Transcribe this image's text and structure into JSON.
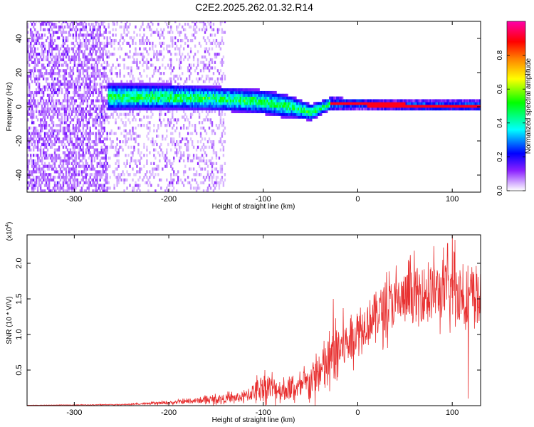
{
  "title": "C2E2.2025.262.01.32.R14",
  "chart_data": [
    {
      "type": "heatmap",
      "xlabel": "Height of straight line (km)",
      "ylabel": "Frequency (Hz)",
      "xlim": [
        -350,
        130
      ],
      "ylim": [
        -50,
        50
      ],
      "xticks": [
        -300,
        -200,
        -100,
        0,
        100
      ],
      "yticks": [
        -40,
        -20,
        0,
        20,
        40
      ],
      "colorbar": {
        "label": "Normalized spectral amplitude",
        "range": [
          0.0,
          1.0
        ],
        "ticks": [
          0.0,
          0.2,
          0.4,
          0.6,
          0.8
        ],
        "tick_labels": [
          "0.0",
          "0.2",
          "0.4",
          "0.6",
          "0.8"
        ],
        "colors": [
          "#ffffff",
          "#b57bff",
          "#7a00ff",
          "#0000ff",
          "#00ffff",
          "#00ff00",
          "#ffff00",
          "#ff7f00",
          "#ff0000",
          "#ff00aa"
        ]
      },
      "features": {
        "noise_region": [
          -350,
          -140
        ],
        "band_center": [
          [
            -260,
            5
          ],
          [
            -200,
            5
          ],
          [
            -150,
            4
          ],
          [
            -100,
            2
          ],
          [
            -70,
            -1
          ],
          [
            -50,
            -4
          ],
          [
            -30,
            1
          ],
          [
            0,
            1
          ],
          [
            50,
            0
          ],
          [
            130,
            0
          ]
        ],
        "band_halfwidth": [
          [
            -260,
            8
          ],
          [
            -150,
            7
          ],
          [
            -80,
            7
          ],
          [
            -40,
            4
          ],
          [
            0,
            3
          ],
          [
            130,
            3
          ]
        ],
        "peak_region": [
          -30,
          130
        ]
      }
    },
    {
      "type": "line",
      "xlabel": "Height of straight line (km)",
      "ylabel": "SNR (10 * V/V)",
      "y_multiplier": "(x10^4)",
      "y_multiplier_base": "(x10",
      "y_multiplier_exp": "4",
      "y_multiplier_close": ")",
      "xlim": [
        -350,
        130
      ],
      "ylim": [
        0,
        24000
      ],
      "xticks": [
        -300,
        -200,
        -100,
        0,
        100
      ],
      "yticks": [
        5000,
        10000,
        15000,
        20000
      ],
      "ytick_labels": [
        "0.5",
        "1.0",
        "1.5",
        "2.0"
      ],
      "color": "#e83030",
      "envelope": [
        [
          -350,
          50
        ],
        [
          -250,
          150
        ],
        [
          -200,
          400
        ],
        [
          -150,
          900
        ],
        [
          -120,
          1200
        ],
        [
          -100,
          2800
        ],
        [
          -80,
          2200
        ],
        [
          -60,
          2500
        ],
        [
          -40,
          4500
        ],
        [
          -25,
          7000
        ],
        [
          -10,
          9000
        ],
        [
          0,
          10500
        ],
        [
          20,
          13000
        ],
        [
          40,
          14500
        ],
        [
          60,
          15500
        ],
        [
          80,
          16000
        ],
        [
          100,
          16000
        ],
        [
          115,
          15500
        ],
        [
          130,
          15000
        ]
      ],
      "noise_frac": [
        [
          -350,
          0.4
        ],
        [
          -100,
          0.9
        ],
        [
          -40,
          0.9
        ],
        [
          0,
          0.35
        ],
        [
          130,
          0.35
        ]
      ],
      "spikes": [
        [
          -26,
          15000
        ],
        [
          -30,
          10500
        ],
        [
          100,
          24000
        ],
        [
          95,
          22800
        ],
        [
          103,
          23300
        ],
        [
          90,
          20500
        ],
        [
          117,
          1000
        ]
      ]
    }
  ]
}
